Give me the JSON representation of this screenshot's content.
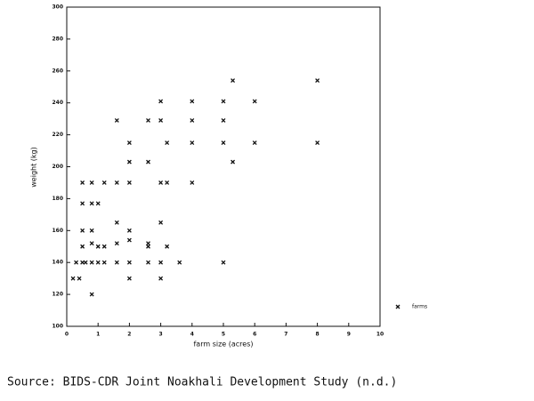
{
  "chart_data": {
    "type": "scatter",
    "x_label": "farm size (acres)",
    "y_label": "weight (kg)",
    "source": "Source: BIDS-CDR Joint Noakhali Development Study (n.d.)",
    "xlim": [
      0,
      10
    ],
    "xticks": [
      0,
      1,
      2,
      3,
      4,
      5,
      6,
      7,
      8,
      9,
      10
    ],
    "ylim": [
      100,
      300
    ],
    "yticks": [
      100,
      120,
      140,
      160,
      180,
      200,
      220,
      240,
      260,
      280,
      300
    ],
    "series": [
      {
        "name": "farms",
        "color": "#111111",
        "x": [
          0.2,
          0.4,
          0.8,
          0.3,
          0.5,
          0.6,
          0.8,
          1.0,
          1.2,
          1.6,
          2.0,
          2.6,
          3.0,
          3.6,
          5.0,
          2.0,
          3.0,
          0.5,
          0.8,
          1.0,
          1.2,
          1.6,
          2.0,
          2.6,
          2.6,
          3.2,
          0.5,
          0.8,
          2.0,
          3.0,
          1.6,
          0.5,
          0.8,
          1.0,
          0.5,
          0.8,
          1.2,
          1.6,
          2.0,
          3.0,
          3.2,
          4.0,
          2.0,
          2.6,
          5.3,
          2.0,
          3.2,
          4.0,
          5.0,
          6.0,
          8.0,
          1.6,
          2.6,
          3.0,
          4.0,
          5.0,
          3.0,
          4.0,
          5.0,
          6.0,
          5.3,
          8.0
        ],
        "values": [
          130,
          130,
          120,
          140,
          140,
          140,
          140,
          140,
          140,
          140,
          140,
          140,
          140,
          140,
          140,
          130,
          130,
          150,
          152,
          150,
          150,
          152,
          154,
          152,
          150,
          150,
          160,
          160,
          160,
          165,
          165,
          177,
          177,
          177,
          190,
          190,
          190,
          190,
          190,
          190,
          190,
          190,
          203,
          203,
          203,
          215,
          215,
          215,
          215,
          215,
          215,
          229,
          229,
          229,
          229,
          229,
          241,
          241,
          241,
          241,
          254,
          254
        ]
      }
    ]
  }
}
